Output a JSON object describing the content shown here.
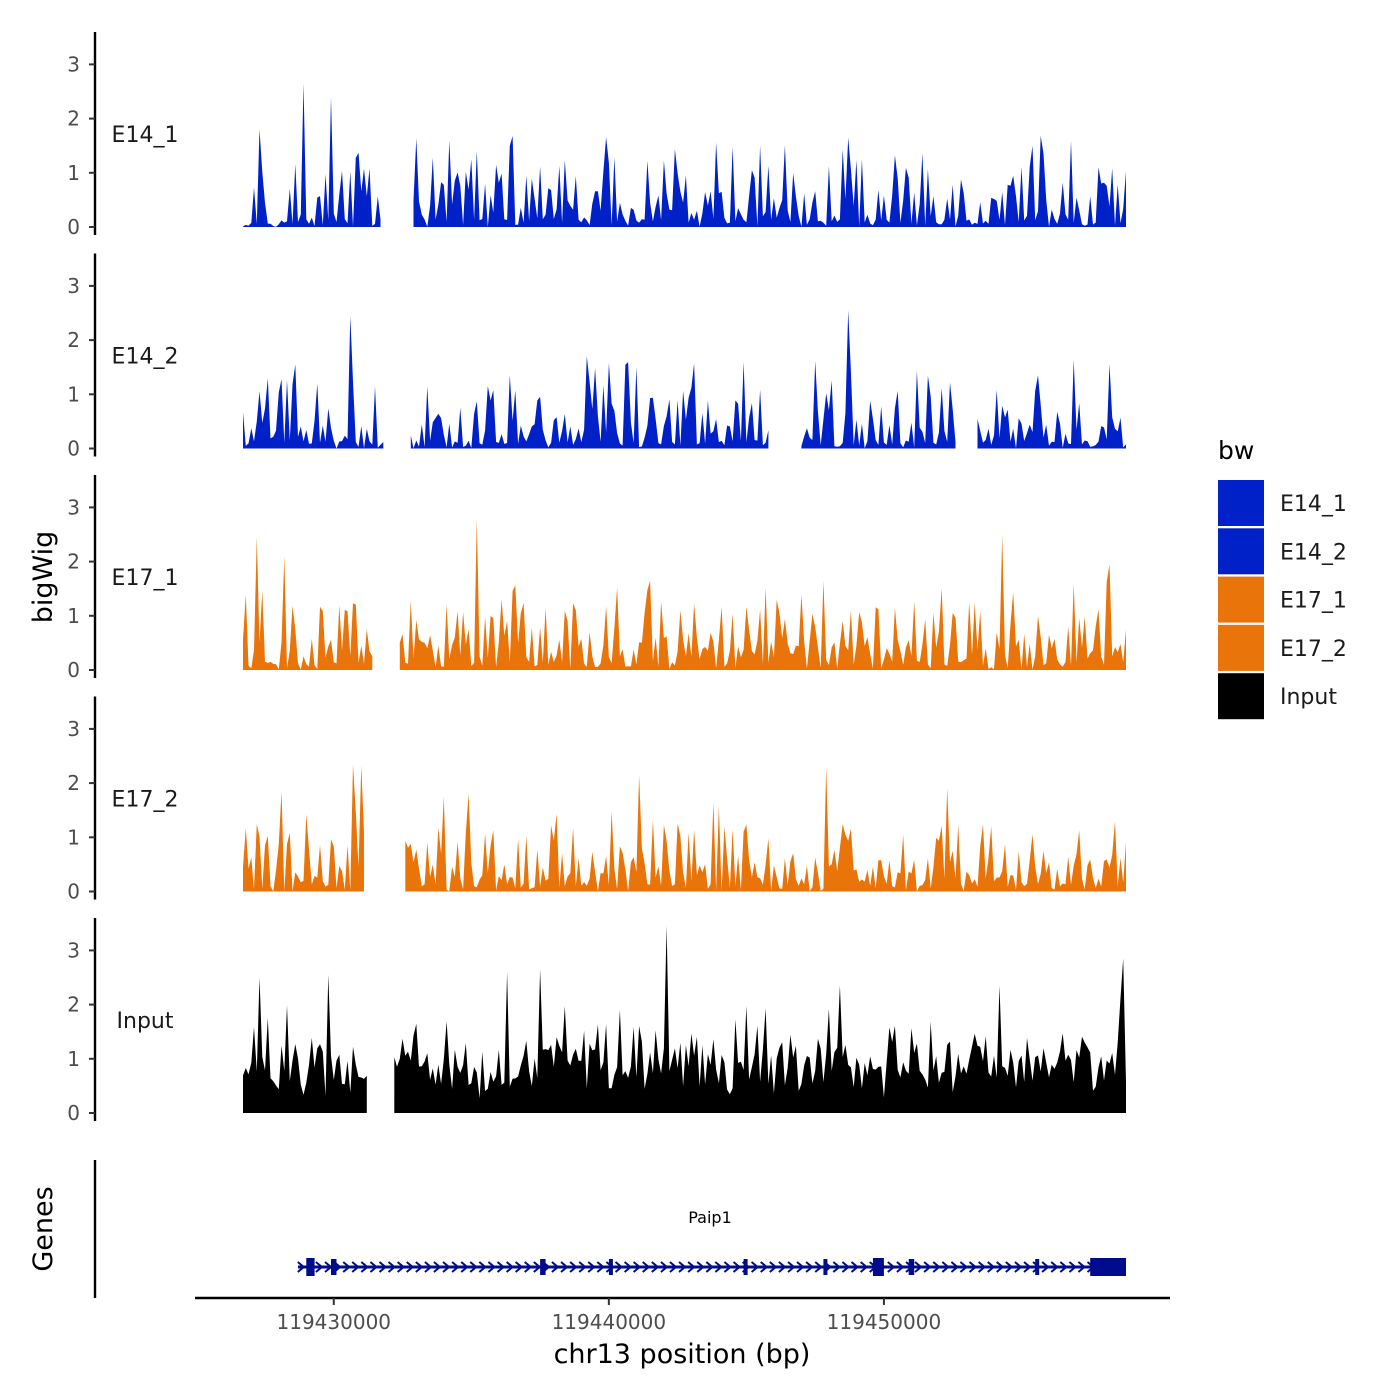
{
  "chart_data": {
    "type": "area",
    "title": "",
    "ylabel": "bigWig",
    "xlabel": "chr13 position (bp)",
    "xlim": [
      119426000,
      119460800
    ],
    "ylim": [
      0,
      3.5
    ],
    "y_ticks": [
      0,
      1,
      2,
      3
    ],
    "x_ticks": [
      119430000,
      119440000,
      119450000
    ],
    "x_tick_labels": [
      "119430000",
      "119440000",
      "119450000"
    ],
    "genes_panel_label": "Genes",
    "legend": {
      "title": "bw",
      "position": "right",
      "entries": [
        {
          "label": "E14_1",
          "color": "#0020c8"
        },
        {
          "label": "E14_2",
          "color": "#0020c8"
        },
        {
          "label": "E17_1",
          "color": "#e8740a"
        },
        {
          "label": "E17_2",
          "color": "#e8740a"
        },
        {
          "label": "Input",
          "color": "#000000"
        }
      ]
    },
    "series": [
      {
        "name": "E14_1",
        "color": "#0020c8",
        "x_start": 119426700,
        "x_step": 100,
        "peaks": [
          [
            119428900,
            2.65
          ],
          [
            119429900,
            2.4
          ],
          [
            119427300,
            1.8
          ],
          [
            119434200,
            1.6
          ],
          [
            119436400,
            1.5
          ],
          [
            119445500,
            1.5
          ],
          [
            119448700,
            1.65
          ],
          [
            119455400,
            1.5
          ],
          [
            119457800,
            1.1
          ]
        ],
        "gaps": [
          [
            119431800,
            119432800
          ]
        ],
        "values": []
      },
      {
        "name": "E14_2",
        "color": "#0020c8",
        "x_start": 119426700,
        "x_step": 100,
        "peaks": [
          [
            119430600,
            2.45
          ],
          [
            119448700,
            2.55
          ],
          [
            119428600,
            1.55
          ],
          [
            119436400,
            1.35
          ],
          [
            119441000,
            1.5
          ],
          [
            119444900,
            1.6
          ],
          [
            119455600,
            1.35
          ]
        ],
        "gaps": [
          [
            119431900,
            119432700
          ],
          [
            119445900,
            119446900
          ],
          [
            119452700,
            119453300
          ]
        ],
        "values": []
      },
      {
        "name": "E17_1",
        "color": "#e8740a",
        "x_start": 119426700,
        "x_step": 100,
        "peaks": [
          [
            119435200,
            2.8
          ],
          [
            119427200,
            2.45
          ],
          [
            119454300,
            2.5
          ],
          [
            119458200,
            1.95
          ],
          [
            119428200,
            2.1
          ],
          [
            119441500,
            1.65
          ],
          [
            119447800,
            1.65
          ]
        ],
        "gaps": [
          [
            119431500,
            119432300
          ]
        ],
        "values": []
      },
      {
        "name": "E17_2",
        "color": "#e8740a",
        "x_start": 119426700,
        "x_step": 100,
        "peaks": [
          [
            119430700,
            2.35
          ],
          [
            119431000,
            2.32
          ],
          [
            119447900,
            2.3
          ],
          [
            119441100,
            2.15
          ],
          [
            119434900,
            1.8
          ],
          [
            119452300,
            1.9
          ],
          [
            119428100,
            1.85
          ]
        ],
        "gaps": [
          [
            119431200,
            119432500
          ]
        ],
        "values": []
      },
      {
        "name": "Input",
        "color": "#000000",
        "x_start": 119426700,
        "x_step": 100,
        "peaks": [
          [
            119442100,
            3.45
          ],
          [
            119429800,
            2.55
          ],
          [
            119427300,
            2.5
          ],
          [
            119437500,
            2.65
          ],
          [
            119436300,
            2.6
          ],
          [
            119458700,
            2.85
          ],
          [
            119448400,
            2.35
          ],
          [
            119454200,
            2.35
          ]
        ],
        "gaps": [
          [
            119431300,
            119432100
          ]
        ],
        "values": []
      }
    ],
    "gene": {
      "name": "Paip1",
      "strand": "+",
      "start": 119428700,
      "end": 119458800,
      "exons": [
        [
          119429000,
          119429300
        ],
        [
          119429900,
          119430100
        ],
        [
          119437500,
          119437700
        ],
        [
          119440000,
          119440100
        ],
        [
          119444900,
          119445000
        ],
        [
          119447800,
          119447900
        ],
        [
          119449600,
          119450000
        ],
        [
          119450900,
          119451100
        ],
        [
          119455500,
          119455600
        ],
        [
          119457500,
          119458800
        ]
      ]
    }
  }
}
